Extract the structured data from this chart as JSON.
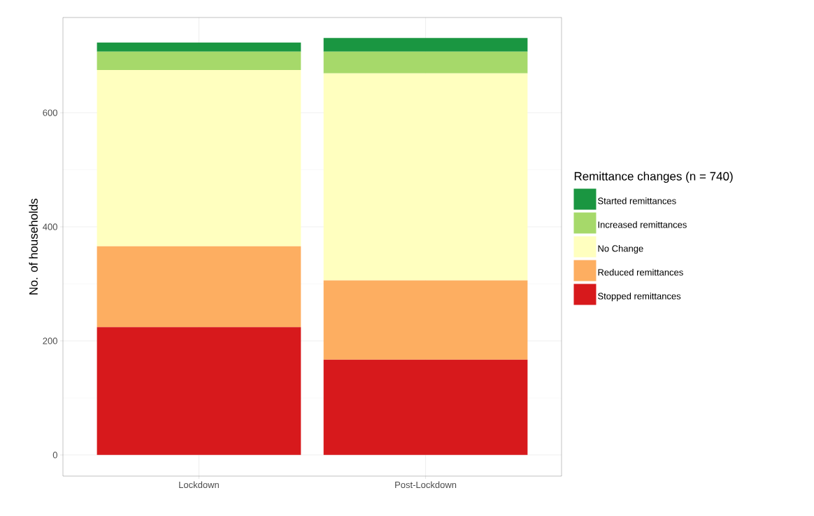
{
  "chart_data": {
    "type": "bar",
    "stacked": true,
    "ylabel": "No. of households",
    "legend_title": "Remittance changes (n = 740)",
    "categories": [
      "Lockdown",
      "Post-Lockdown"
    ],
    "series": [
      {
        "name": "Stopped remittances",
        "color": "#d7191c",
        "values": [
          224,
          167
        ]
      },
      {
        "name": "Reduced remittances",
        "color": "#fdae61",
        "values": [
          142,
          139
        ]
      },
      {
        "name": "No Change",
        "color": "#ffffbf",
        "values": [
          309,
          363
        ]
      },
      {
        "name": "Increased remittances",
        "color": "#a6d96a",
        "values": [
          32,
          38
        ]
      },
      {
        "name": "Started remittances",
        "color": "#1a9641",
        "values": [
          16,
          24
        ]
      }
    ],
    "ylim": [
      -37,
      767
    ],
    "yticks": [
      0,
      200,
      400,
      600
    ],
    "grid": true,
    "legend": "right"
  }
}
